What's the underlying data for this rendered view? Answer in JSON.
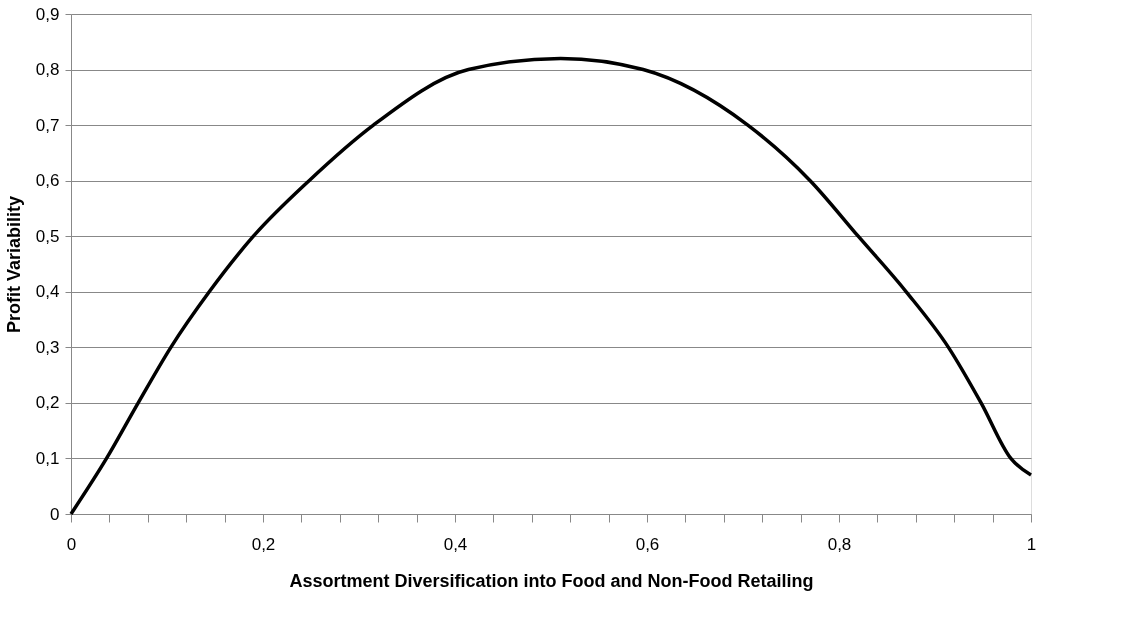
{
  "chart_data": {
    "type": "line",
    "xlabel": "Assortment Diversification into Food and Non-Food Retailing",
    "ylabel": "Profit Variability",
    "x": [
      0,
      0.037,
      0.07,
      0.104,
      0.144,
      0.19,
      0.248,
      0.315,
      0.414,
      0.51,
      0.596,
      0.705,
      0.77,
      0.82,
      0.87,
      0.914,
      0.948,
      0.979,
      1
    ],
    "series": [
      {
        "color": "#000000",
        "values": [
          0,
          0.1,
          0.2,
          0.3,
          0.4,
          0.5,
          0.6,
          0.7,
          0.8,
          0.82,
          0.8,
          0.7,
          0.6,
          0.5,
          0.4,
          0.3,
          0.2,
          0.1,
          0.07
        ]
      }
    ],
    "xlim": [
      0,
      1
    ],
    "xticks": [
      {
        "value": 0,
        "label": "0"
      },
      {
        "value": 0.04,
        "label": null
      },
      {
        "value": 0.08,
        "label": null
      },
      {
        "value": 0.12,
        "label": null
      },
      {
        "value": 0.16,
        "label": null
      },
      {
        "value": 0.2,
        "label": "0,2"
      },
      {
        "value": 0.24,
        "label": null
      },
      {
        "value": 0.28,
        "label": null
      },
      {
        "value": 0.32,
        "label": null
      },
      {
        "value": 0.36,
        "label": null
      },
      {
        "value": 0.4,
        "label": "0,4"
      },
      {
        "value": 0.44,
        "label": null
      },
      {
        "value": 0.48,
        "label": null
      },
      {
        "value": 0.52,
        "label": null
      },
      {
        "value": 0.56,
        "label": null
      },
      {
        "value": 0.6,
        "label": "0,6"
      },
      {
        "value": 0.64,
        "label": null
      },
      {
        "value": 0.68,
        "label": null
      },
      {
        "value": 0.72,
        "label": null
      },
      {
        "value": 0.76,
        "label": null
      },
      {
        "value": 0.8,
        "label": "0,8"
      },
      {
        "value": 0.84,
        "label": null
      },
      {
        "value": 0.88,
        "label": null
      },
      {
        "value": 0.92,
        "label": null
      },
      {
        "value": 0.96,
        "label": null
      },
      {
        "value": 1,
        "label": "1"
      }
    ],
    "ylim": [
      0,
      0.9
    ],
    "yticks": [
      0,
      {
        "value": 0.1,
        "label": "0,1"
      },
      {
        "value": 0.2,
        "label": "0,2"
      },
      {
        "value": 0.3,
        "label": "0,3"
      },
      {
        "value": 0.4,
        "label": "0,4"
      },
      {
        "value": 0.5,
        "label": "0,5"
      },
      {
        "value": 0.6,
        "label": "0,6"
      },
      {
        "value": 0.7,
        "label": "0,7"
      },
      {
        "value": 0.8,
        "label": "0,8"
      },
      {
        "value": 0.9,
        "label": "0,9"
      }
    ],
    "grid": "y",
    "marker": "none",
    "line_style": "solid"
  }
}
